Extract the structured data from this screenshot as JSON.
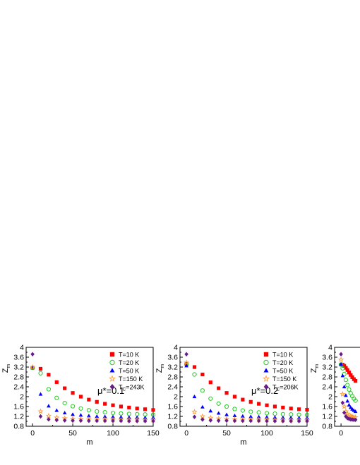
{
  "chart_data": [
    {
      "type": "scatter",
      "title": "",
      "annotation": "μ*=0.1",
      "xlabel": "m",
      "ylabel_main": "Z",
      "ylabel_sub": "m",
      "xlim": [
        -8,
        150
      ],
      "ylim": [
        0.8,
        4.0
      ],
      "xticks": [
        0,
        50,
        100,
        150
      ],
      "yticks": [
        0.8,
        1.2,
        1.6,
        2.0,
        2.4,
        2.8,
        3.2,
        3.6,
        4.0
      ],
      "legend_position": "top-right",
      "series": [
        {
          "name": "T=10 K",
          "marker": "square",
          "color": "#ff0000",
          "x": [
            0,
            10,
            20,
            30,
            40,
            50,
            60,
            70,
            80,
            90,
            100,
            110,
            120,
            130,
            140,
            150
          ],
          "y": [
            3.17,
            3.13,
            2.89,
            2.59,
            2.34,
            2.15,
            2.0,
            1.88,
            1.79,
            1.71,
            1.65,
            1.6,
            1.56,
            1.52,
            1.49,
            1.46
          ]
        },
        {
          "name": "T=20 K",
          "marker": "circle",
          "color": "#22cc22",
          "x": [
            0,
            10,
            20,
            30,
            40,
            50,
            60,
            70,
            80,
            90,
            100,
            110,
            120,
            130,
            140,
            150
          ],
          "y": [
            3.17,
            2.95,
            2.3,
            1.95,
            1.74,
            1.61,
            1.52,
            1.45,
            1.4,
            1.37,
            1.34,
            1.32,
            1.3,
            1.29,
            1.28,
            1.27
          ]
        },
        {
          "name": "T=50 K",
          "marker": "triangle",
          "color": "#0000ff",
          "x": [
            0,
            10,
            20,
            30,
            40,
            50,
            60,
            70,
            80,
            90,
            100,
            110,
            120,
            130,
            140,
            150
          ],
          "y": [
            3.17,
            2.1,
            1.62,
            1.44,
            1.34,
            1.28,
            1.25,
            1.22,
            1.2,
            1.19,
            1.18,
            1.17,
            1.16,
            1.16,
            1.15,
            1.15
          ]
        },
        {
          "name": "T=150 K",
          "marker": "star",
          "color": "#ff9933",
          "x": [
            0,
            10,
            20,
            30,
            40,
            50,
            60,
            70,
            80,
            90,
            100,
            110,
            120,
            130,
            140,
            150
          ],
          "y": [
            3.2,
            1.4,
            1.22,
            1.15,
            1.12,
            1.1,
            1.09,
            1.08,
            1.07,
            1.07,
            1.06,
            1.06,
            1.06,
            1.06,
            1.05,
            1.05
          ]
        },
        {
          "name": "T=243K",
          "legend_main": "T",
          "legend_sub": "C",
          "legend_rest": "=243K",
          "marker": "diamond",
          "color": "#6b1a8a",
          "x": [
            0,
            10,
            20,
            30,
            40,
            50,
            60,
            70,
            80,
            90,
            100,
            110,
            120,
            130,
            140,
            150
          ],
          "y": [
            3.72,
            1.2,
            1.08,
            1.05,
            1.04,
            1.03,
            1.03,
            1.02,
            1.02,
            1.02,
            1.02,
            1.02,
            1.01,
            1.01,
            1.01,
            1.01
          ]
        }
      ]
    },
    {
      "type": "scatter",
      "title": "",
      "annotation": "μ*=0.2",
      "xlabel": "m",
      "ylabel_main": "Z",
      "ylabel_sub": "m",
      "xlim": [
        -8,
        150
      ],
      "ylim": [
        0.8,
        4.0
      ],
      "xticks": [
        0,
        50,
        100,
        150
      ],
      "yticks": [
        0.8,
        1.2,
        1.6,
        2.0,
        2.4,
        2.8,
        3.2,
        3.6,
        4.0
      ],
      "legend_position": "top-right",
      "series": [
        {
          "name": "T=10 K",
          "marker": "square",
          "color": "#ff0000",
          "x": [
            0,
            10,
            20,
            30,
            40,
            50,
            60,
            70,
            80,
            90,
            100,
            110,
            120,
            130,
            140,
            150
          ],
          "y": [
            3.33,
            3.2,
            2.9,
            2.58,
            2.34,
            2.15,
            2.0,
            1.88,
            1.79,
            1.71,
            1.65,
            1.6,
            1.56,
            1.52,
            1.49,
            1.47
          ]
        },
        {
          "name": "T=20 K",
          "marker": "circle",
          "color": "#22cc22",
          "x": [
            0,
            10,
            20,
            30,
            40,
            50,
            60,
            70,
            80,
            90,
            100,
            110,
            120,
            130,
            140,
            150
          ],
          "y": [
            3.3,
            2.9,
            2.25,
            1.92,
            1.72,
            1.6,
            1.5,
            1.44,
            1.39,
            1.36,
            1.33,
            1.31,
            1.29,
            1.28,
            1.27,
            1.26
          ]
        },
        {
          "name": "T=50 K",
          "marker": "triangle",
          "color": "#0000ff",
          "x": [
            0,
            10,
            20,
            30,
            40,
            50,
            60,
            70,
            80,
            90,
            100,
            110,
            120,
            130,
            140,
            150
          ],
          "y": [
            3.25,
            2.0,
            1.58,
            1.42,
            1.33,
            1.27,
            1.23,
            1.21,
            1.19,
            1.18,
            1.17,
            1.16,
            1.15,
            1.15,
            1.14,
            1.14
          ]
        },
        {
          "name": "T=150 K",
          "marker": "star",
          "color": "#ff9933",
          "x": [
            0,
            10,
            20,
            30,
            40,
            50,
            60,
            70,
            80,
            90,
            100,
            110,
            120,
            130,
            140,
            150
          ],
          "y": [
            3.38,
            1.38,
            1.2,
            1.14,
            1.11,
            1.09,
            1.08,
            1.07,
            1.07,
            1.06,
            1.06,
            1.06,
            1.05,
            1.05,
            1.05,
            1.05
          ]
        },
        {
          "name": "T=206K",
          "legend_main": "T",
          "legend_sub": "C",
          "legend_rest": "=206K",
          "marker": "diamond",
          "color": "#6b1a8a",
          "x": [
            0,
            10,
            20,
            30,
            40,
            50,
            60,
            70,
            80,
            90,
            100,
            110,
            120,
            130,
            140,
            150
          ],
          "y": [
            3.72,
            1.18,
            1.07,
            1.04,
            1.03,
            1.03,
            1.02,
            1.02,
            1.02,
            1.02,
            1.01,
            1.01,
            1.01,
            1.01,
            1.01,
            1.01
          ]
        }
      ]
    },
    {
      "type": "scatter",
      "title": "",
      "xlabel": "",
      "ylabel_main": "Z",
      "ylabel_sub": "m",
      "xlim": [
        -8,
        150
      ],
      "ylim": [
        0.8,
        4.0
      ],
      "xticks": [
        0
      ],
      "yticks": [
        0.8,
        1.2,
        1.6,
        2.0,
        2.4,
        2.8,
        3.2,
        3.6,
        4.0
      ],
      "series": [
        {
          "marker": "square",
          "color": "#ff0000",
          "x": [
            0,
            2,
            4,
            6,
            8,
            10,
            12,
            14,
            16,
            18
          ],
          "y": [
            3.3,
            3.3,
            3.25,
            3.17,
            3.08,
            2.98,
            2.88,
            2.79,
            2.71,
            2.64
          ]
        },
        {
          "marker": "circle",
          "color": "#22cc22",
          "x": [
            0,
            2,
            4,
            6,
            8,
            10,
            12,
            14,
            16,
            18
          ],
          "y": [
            3.3,
            3.15,
            2.92,
            2.68,
            2.47,
            2.29,
            2.14,
            2.02,
            1.92,
            1.84
          ]
        },
        {
          "marker": "triangle",
          "color": "#0000ff",
          "x": [
            0,
            2,
            4,
            6,
            8,
            10,
            12,
            14,
            16,
            18
          ],
          "y": [
            3.32,
            2.85,
            2.4,
            2.05,
            1.82,
            1.66,
            1.56,
            1.49,
            1.44,
            1.4
          ]
        },
        {
          "marker": "star",
          "color": "#ff9933",
          "x": [
            0,
            2,
            4,
            6,
            8,
            10,
            12,
            14,
            16,
            18
          ],
          "y": [
            3.5,
            2.1,
            1.6,
            1.4,
            1.3,
            1.25,
            1.21,
            1.19,
            1.17,
            1.16
          ]
        },
        {
          "marker": "diamond",
          "color": "#6b1a8a",
          "x": [
            0,
            2,
            4,
            6,
            8,
            10,
            12,
            14,
            16,
            18
          ],
          "y": [
            3.72,
            1.75,
            1.35,
            1.2,
            1.13,
            1.1,
            1.08,
            1.07,
            1.06,
            1.06
          ]
        }
      ]
    }
  ]
}
